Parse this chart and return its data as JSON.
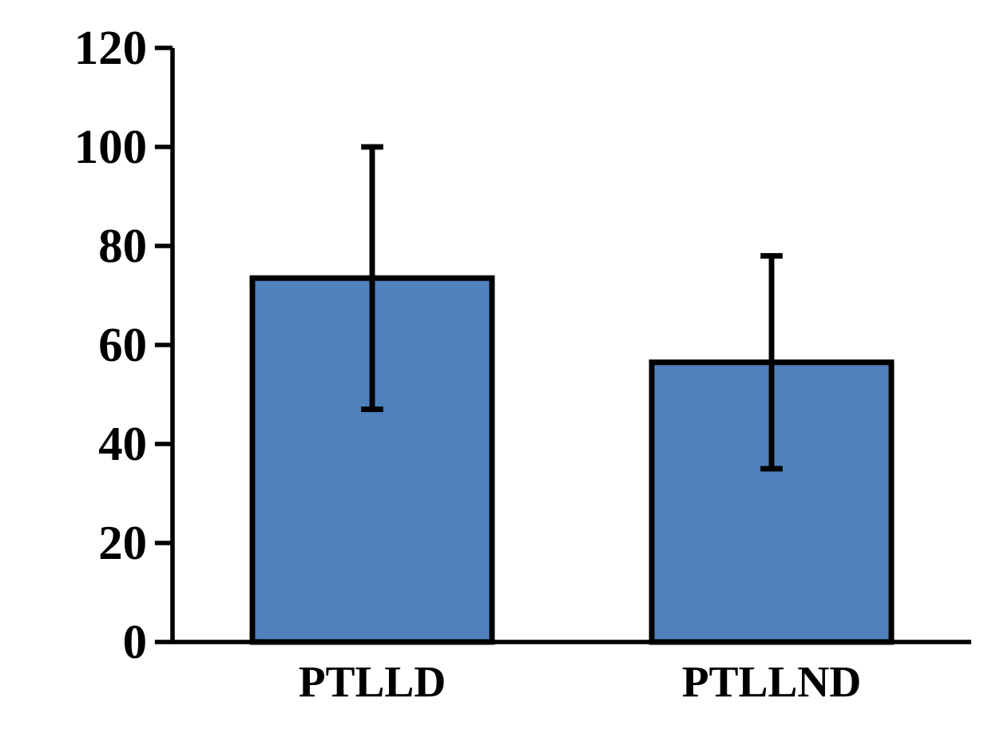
{
  "chart_data": {
    "type": "bar",
    "categories": [
      "PTLLD",
      "PTLLND"
    ],
    "values": [
      73.5,
      56.5
    ],
    "errors": [
      26.5,
      21.5
    ],
    "color": "#4f81bd",
    "ylim": [
      0,
      120
    ],
    "yticks": [
      0,
      20,
      40,
      60,
      80,
      100,
      120
    ],
    "grid": false
  }
}
